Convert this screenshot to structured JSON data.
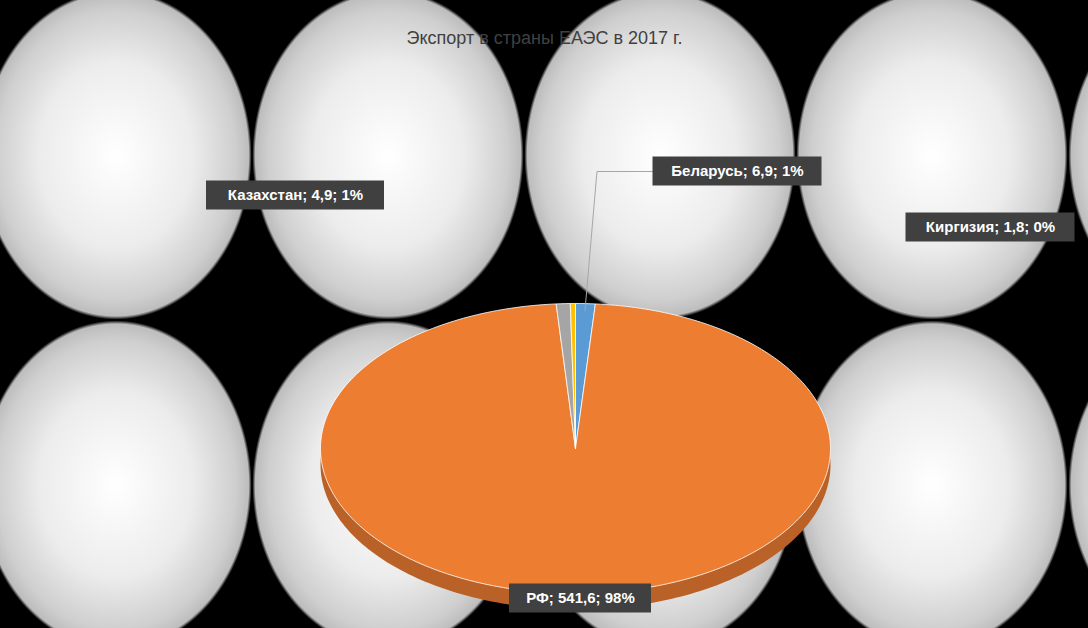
{
  "chart_data": {
    "type": "pie",
    "title": "Экспорт в страны ЕАЭС в 2017 г.",
    "categories": [
      "Беларусь",
      "РФ",
      "Казахстан",
      "Киргизия"
    ],
    "values": [
      6.9,
      541.6,
      4.9,
      1.8
    ],
    "value_labels": [
      "Беларусь; 6,9; 1%",
      "РФ; 541,6; 98%",
      "Казахстан; 4,9; 1%",
      "Киргизия; 1,8; 0%"
    ],
    "colors": [
      "#5b9bd5",
      "#ed7d31",
      "#a5a5a5",
      "#ffc000"
    ],
    "data_labels": true
  }
}
